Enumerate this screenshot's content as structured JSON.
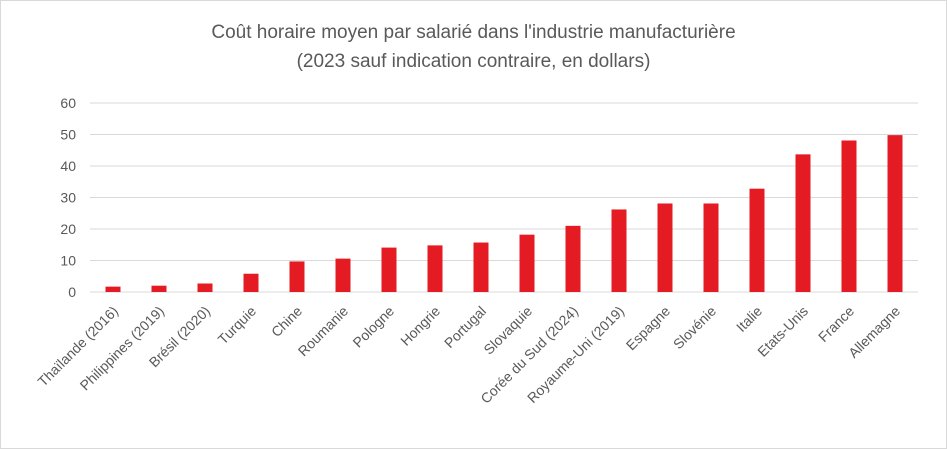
{
  "chart_data": {
    "type": "bar",
    "title": "Coût horaire moyen par salarié dans l'industrie manufacturière",
    "subtitle": "(2023 sauf indication contraire, en dollars)",
    "xlabel": "",
    "ylabel": "",
    "ylim": [
      0,
      60
    ],
    "yticks": [
      "0",
      "10",
      "20",
      "30",
      "40",
      "50",
      "60"
    ],
    "grid": true,
    "legend": "none",
    "bar_color": "#e41b23",
    "categories": [
      "Thaïlande (2016)",
      "Philippines (2019)",
      "Brésil (2020)",
      "Turquie",
      "Chine",
      "Roumanie",
      "Pologne",
      "Hongrie",
      "Portugal",
      "Slovaquie",
      "Corée du Sud (2024)",
      "Royaume-Uni (2019)",
      "Espagne",
      "Slovénie",
      "Italie",
      "Etats-Unis",
      "France",
      "Allemagne"
    ],
    "values": [
      1.7,
      2.0,
      2.7,
      5.8,
      9.7,
      10.6,
      14.1,
      14.8,
      15.7,
      18.2,
      21.0,
      26.2,
      28.1,
      28.1,
      32.8,
      43.7,
      48.1,
      49.8
    ]
  }
}
